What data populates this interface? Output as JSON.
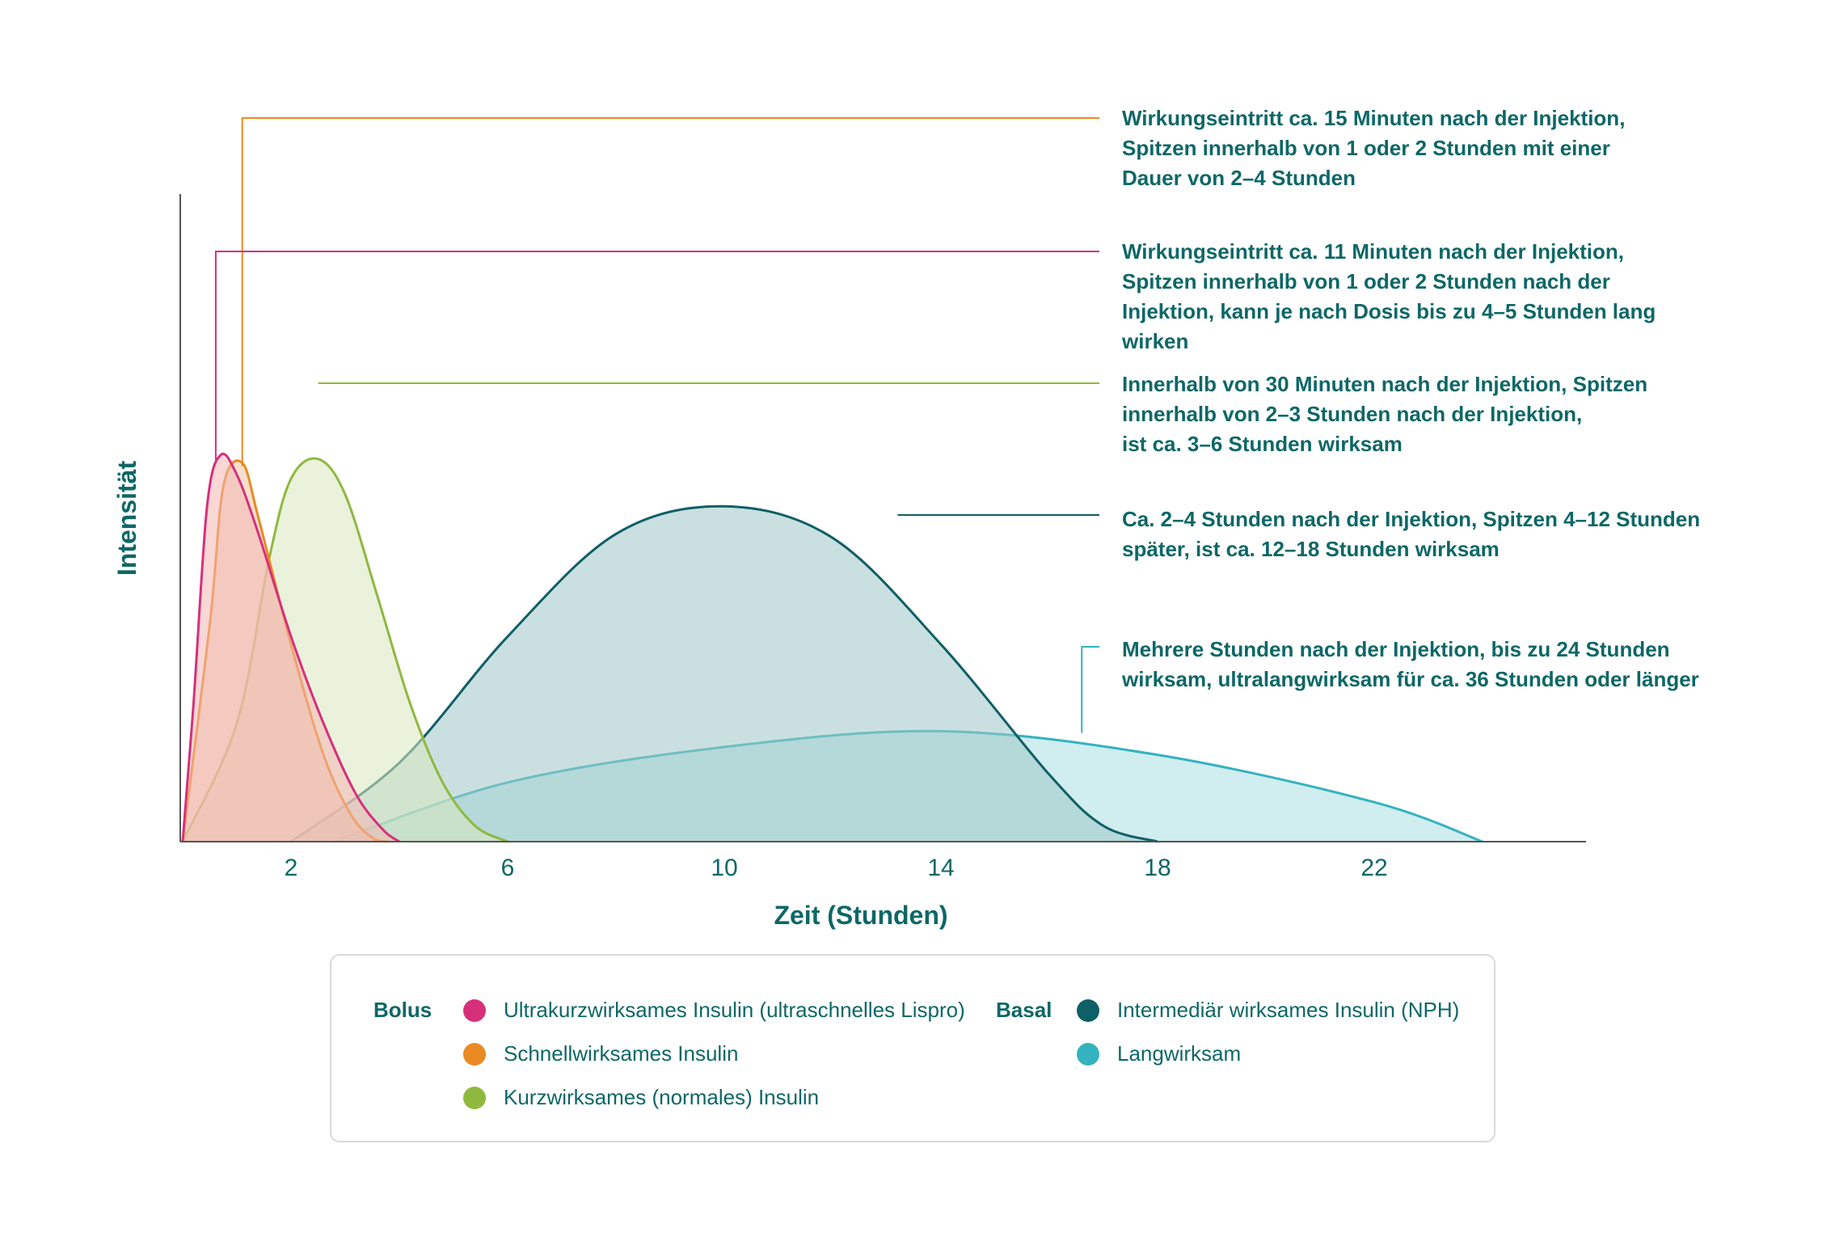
{
  "chart_data": {
    "type": "area",
    "xlabel": "Zeit (Stunden)",
    "ylabel": "Intensität",
    "xlim": [
      -2,
      26
    ],
    "ylim": [
      0,
      1
    ],
    "x_ticks": [
      2,
      6,
      10,
      14,
      18,
      22
    ],
    "grid": false,
    "series": [
      {
        "name": "Ultrakurzwirksames Insulin (ultraschnelles Lispro)",
        "group": "Bolus",
        "color": "#d6307a",
        "fill": "#f3b6b3",
        "x": [
          0,
          0.2,
          0.45,
          0.7,
          1.0,
          1.4,
          2.0,
          2.6,
          3.2,
          3.7,
          4.0
        ],
        "y": [
          0,
          0.35,
          0.85,
          0.98,
          0.93,
          0.78,
          0.52,
          0.3,
          0.12,
          0.03,
          0
        ]
      },
      {
        "name": "Schnellwirksames Insulin",
        "group": "Bolus",
        "color": "#ea8a23",
        "fill": "#f0c4a6",
        "x": [
          0,
          0.5,
          0.75,
          1.1,
          1.4,
          2.0,
          2.6,
          3.1,
          3.5,
          3.8
        ],
        "y": [
          0,
          0.55,
          0.9,
          0.96,
          0.82,
          0.5,
          0.22,
          0.07,
          0.01,
          0
        ]
      },
      {
        "name": "Kurzwirksames (normales) Insulin",
        "group": "Bolus",
        "color": "#90b83e",
        "fill": "#d9e8c0",
        "x": [
          0,
          1.0,
          1.6,
          2.0,
          2.5,
          3.0,
          3.6,
          4.2,
          4.8,
          5.4,
          6.0
        ],
        "y": [
          0,
          0.3,
          0.72,
          0.92,
          0.97,
          0.88,
          0.62,
          0.35,
          0.15,
          0.04,
          0
        ]
      },
      {
        "name": "Intermediär wirksames Insulin (NPH)",
        "group": "Basal",
        "color": "#0f5f66",
        "fill": "#9fc6c6",
        "x": [
          2,
          4,
          6,
          8,
          10,
          12,
          14,
          16,
          17,
          18
        ],
        "y": [
          0,
          0.2,
          0.52,
          0.78,
          0.85,
          0.77,
          0.5,
          0.17,
          0.04,
          0
        ]
      },
      {
        "name": "Langwirksam",
        "group": "Basal",
        "color": "#34b3bf",
        "fill": "#b7e3e7",
        "x": [
          2.8,
          6,
          10,
          14,
          18,
          22,
          24
        ],
        "y": [
          0,
          0.15,
          0.24,
          0.28,
          0.22,
          0.1,
          0
        ]
      }
    ],
    "annotations": [
      {
        "series": 1,
        "lines": [
          "Wirkungseintritt ca. 15 Minuten nach der Injektion,",
          "Spitzen innerhalb von 1 oder 2 Stunden mit einer",
          "Dauer von 2–4 Stunden"
        ]
      },
      {
        "series": 0,
        "lines": [
          "Wirkungseintritt ca. 11 Minuten nach der Injektion,",
          "Spitzen innerhalb von 1 oder 2 Stunden nach der",
          "Injektion, kann je nach Dosis bis zu 4–5 Stunden lang",
          "wirken"
        ]
      },
      {
        "series": 2,
        "lines": [
          "Innerhalb von 30 Minuten nach der Injektion, Spitzen",
          "innerhalb von 2–3 Stunden nach der Injektion,",
          "ist ca. 3–6 Stunden wirksam"
        ]
      },
      {
        "series": 3,
        "lines": [
          "Ca. 2–4 Stunden nach der Injektion, Spitzen 4–12 Stunden",
          "später, ist ca. 12–18 Stunden wirksam"
        ]
      },
      {
        "series": 4,
        "lines": [
          "Mehrere Stunden nach der Injektion, bis zu 24 Stunden",
          "wirksam, ultralangwirksam für ca. 36 Stunden oder länger"
        ]
      }
    ]
  },
  "legend": {
    "bolus_label": "Bolus",
    "basal_label": "Basal",
    "items": [
      {
        "label": "Ultrakurzwirksames Insulin (ultraschnelles Lispro)",
        "color": "#d6307a"
      },
      {
        "label": "Schnellwirksames Insulin",
        "color": "#ea8a23"
      },
      {
        "label": "Kurzwirksames (normales) Insulin",
        "color": "#90b83e"
      },
      {
        "label": "Intermediär wirksames Insulin (NPH)",
        "color": "#0f5f66"
      },
      {
        "label": "Langwirksam",
        "color": "#34b3bf"
      }
    ]
  }
}
